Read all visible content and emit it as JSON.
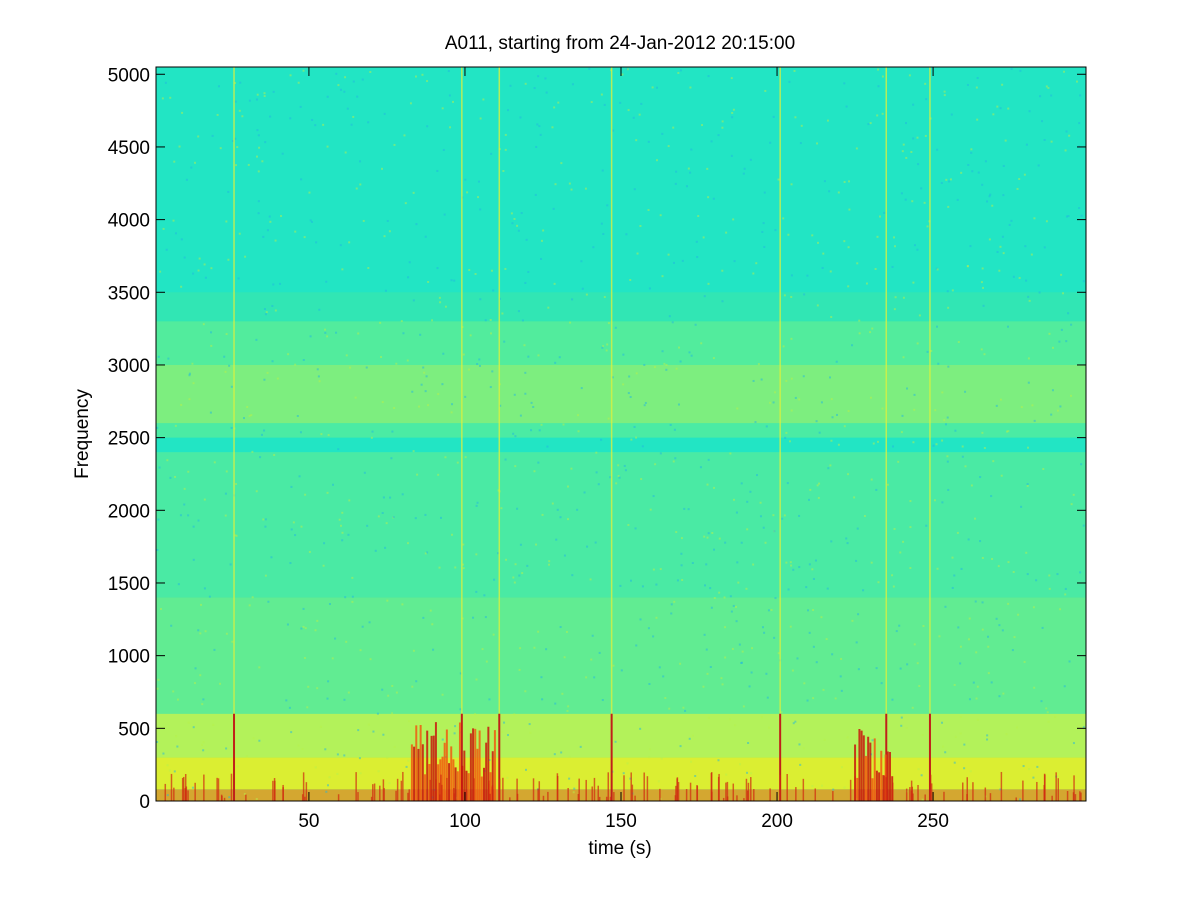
{
  "chart_data": {
    "type": "heatmap",
    "title": "A011, starting from 24-Jan-2012 20:15:00",
    "xlabel": "time (s)",
    "ylabel": "Frequency",
    "xlim": [
      1,
      299
    ],
    "ylim": [
      0,
      5050
    ],
    "x_ticks": [
      50,
      100,
      150,
      200,
      250
    ],
    "y_ticks": [
      0,
      500,
      1000,
      1500,
      2000,
      2500,
      3000,
      3500,
      4000,
      4500,
      5000
    ],
    "colormap": "jet",
    "background_band": {
      "low_hz": 2600,
      "high_hz": 3000
    },
    "transients_s": [
      26,
      99,
      111,
      147,
      201,
      235,
      249
    ],
    "hotspots": [
      {
        "t_start": 83,
        "t_end": 110,
        "f_max": 550
      },
      {
        "t_start": 225,
        "t_end": 237,
        "f_max": 500
      }
    ]
  }
}
